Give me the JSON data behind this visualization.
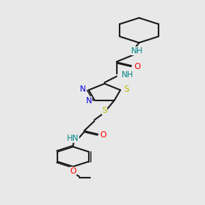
{
  "bg": "#e8e8e8",
  "bc": "#1a1a1a",
  "Nc": "#0000dd",
  "Oc": "#ff0000",
  "Sc": "#bbbb00",
  "tc": "#008888",
  "lw": 1.6,
  "fs": 8.5,
  "xlim": [
    0,
    10
  ],
  "ylim": [
    0,
    18
  ]
}
